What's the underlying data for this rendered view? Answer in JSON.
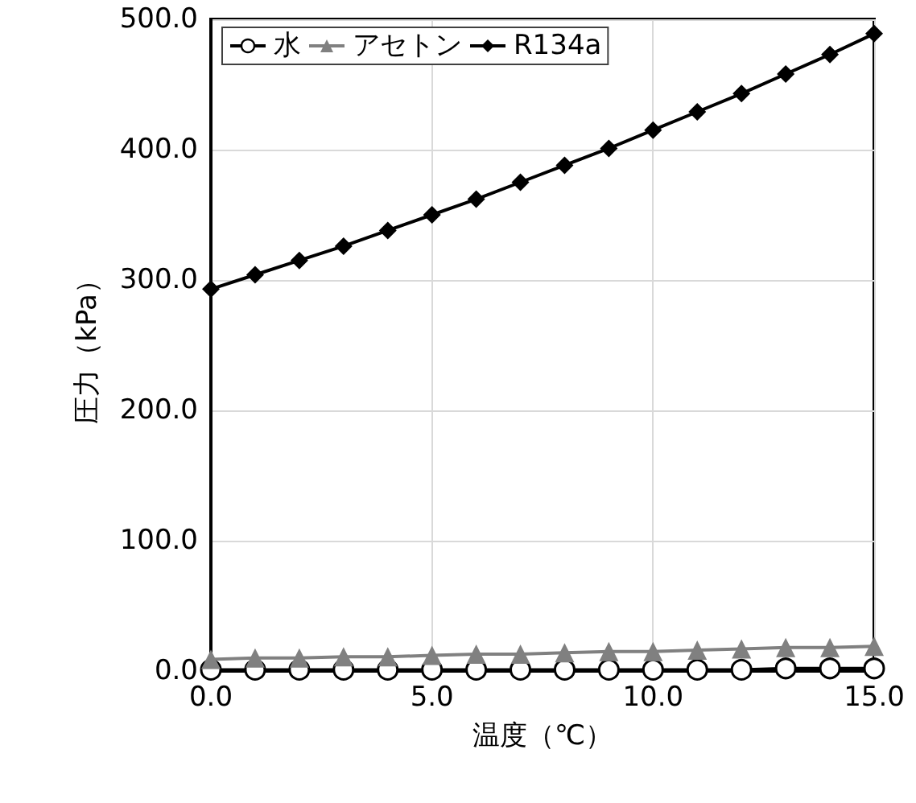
{
  "chart_data": {
    "type": "line",
    "xlabel": "温度（℃）",
    "ylabel": "圧力（kPa）",
    "x": [
      0,
      1,
      2,
      3,
      4,
      5,
      6,
      7,
      8,
      9,
      10,
      11,
      12,
      13,
      14,
      15
    ],
    "series": [
      {
        "name": "水",
        "color": "#000000",
        "marker": "circle",
        "values": [
          1,
          1,
          1,
          1,
          1,
          1,
          1,
          1,
          1,
          1,
          1,
          1,
          1,
          2,
          2,
          2
        ]
      },
      {
        "name": "アセトン",
        "color": "#808080",
        "marker": "triangle",
        "values": [
          9,
          10,
          10,
          11,
          11,
          12,
          13,
          13,
          14,
          15,
          15,
          16,
          17,
          18,
          18,
          19
        ]
      },
      {
        "name": "R134a",
        "color": "#000000",
        "marker": "diamond",
        "values": [
          293,
          304,
          315,
          326,
          338,
          350,
          362,
          375,
          388,
          401,
          415,
          429,
          443,
          458,
          473,
          489
        ]
      }
    ],
    "xlim": [
      0,
      15
    ],
    "xticks": [
      {
        "value": 0,
        "label": "0.0"
      },
      {
        "value": 5,
        "label": "5.0"
      },
      {
        "value": 10,
        "label": "10.0"
      },
      {
        "value": 15,
        "label": "15.0"
      }
    ],
    "ylim": [
      0,
      500
    ],
    "yticks": [
      {
        "value": 0,
        "label": "0.0"
      },
      {
        "value": 100,
        "label": "100.0"
      },
      {
        "value": 200,
        "label": "200.0"
      },
      {
        "value": 300,
        "label": "300.0"
      },
      {
        "value": 400,
        "label": "400.0"
      },
      {
        "value": 500,
        "label": "500.0"
      }
    ],
    "grid": true,
    "legend": "top left",
    "line_style": "solid"
  }
}
